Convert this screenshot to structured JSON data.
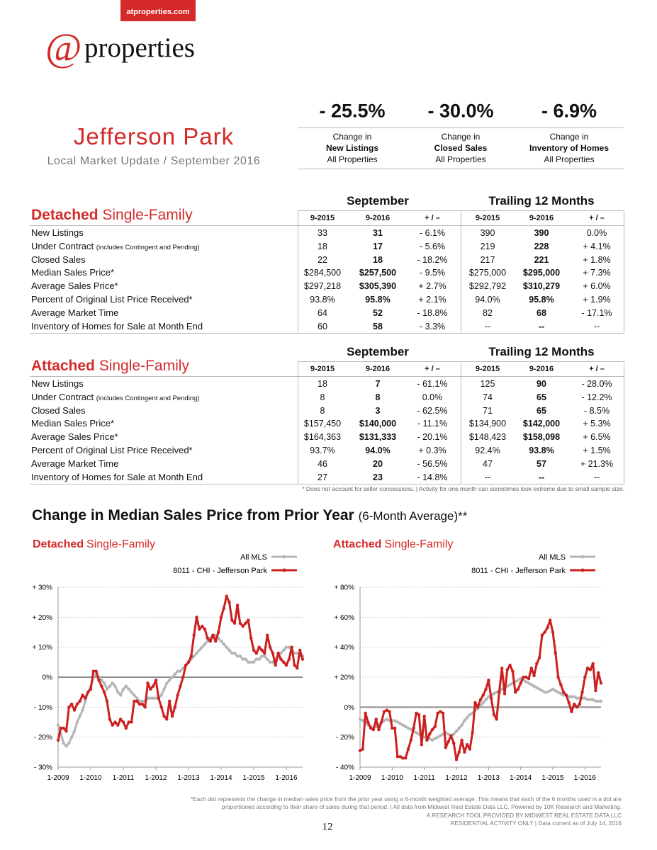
{
  "header": {
    "site": "atproperties.com",
    "logo_at": "@",
    "logo_text": "properties",
    "title": "Jefferson Park",
    "subtitle": "Local Market Update / September 2016"
  },
  "kpis": [
    {
      "value": "- 25.5%",
      "line1": "Change in",
      "line2": "New Listings",
      "line3": "All Properties"
    },
    {
      "value": "- 30.0%",
      "line1": "Change in",
      "line2": "Closed Sales",
      "line3": "All Properties"
    },
    {
      "value": "- 6.9%",
      "line1": "Change in",
      "line2": "Inventory of Homes",
      "line3": "All Properties"
    }
  ],
  "tables": [
    {
      "title_bold": "Detached",
      "title": "Single-Family",
      "groups": [
        "September",
        "Trailing 12 Months"
      ],
      "columns": [
        "9-2015",
        "9-2016",
        "+ / –",
        "9-2015",
        "9-2016",
        "+ / –"
      ],
      "rows": [
        {
          "label": "New Listings",
          "cells": [
            "33",
            "31",
            "- 6.1%",
            "390",
            "390",
            "0.0%"
          ]
        },
        {
          "label": "Under Contract",
          "note": "(includes Contingent and Pending)",
          "cells": [
            "18",
            "17",
            "- 5.6%",
            "219",
            "228",
            "+ 4.1%"
          ]
        },
        {
          "label": "Closed Sales",
          "cells": [
            "22",
            "18",
            "- 18.2%",
            "217",
            "221",
            "+ 1.8%"
          ]
        },
        {
          "label": "Median Sales Price*",
          "cells": [
            "$284,500",
            "$257,500",
            "- 9.5%",
            "$275,000",
            "$295,000",
            "+ 7.3%"
          ]
        },
        {
          "label": "Average Sales Price*",
          "cells": [
            "$297,218",
            "$305,390",
            "+ 2.7%",
            "$292,792",
            "$310,279",
            "+ 6.0%"
          ]
        },
        {
          "label": "Percent of Original List Price Received*",
          "cells": [
            "93.8%",
            "95.8%",
            "+ 2.1%",
            "94.0%",
            "95.8%",
            "+ 1.9%"
          ]
        },
        {
          "label": "Average Market Time",
          "cells": [
            "64",
            "52",
            "- 18.8%",
            "82",
            "68",
            "- 17.1%"
          ]
        },
        {
          "label": "Inventory of Homes for Sale at Month End",
          "cells": [
            "60",
            "58",
            "- 3.3%",
            "--",
            "--",
            "--"
          ]
        }
      ]
    },
    {
      "title_bold": "Attached",
      "title": "Single-Family",
      "groups": [
        "September",
        "Trailing 12 Months"
      ],
      "columns": [
        "9-2015",
        "9-2016",
        "+ / –",
        "9-2015",
        "9-2016",
        "+ / –"
      ],
      "rows": [
        {
          "label": "New Listings",
          "cells": [
            "18",
            "7",
            "- 61.1%",
            "125",
            "90",
            "- 28.0%"
          ]
        },
        {
          "label": "Under Contract",
          "note": "(includes Contingent and Pending)",
          "cells": [
            "8",
            "8",
            "0.0%",
            "74",
            "65",
            "- 12.2%"
          ]
        },
        {
          "label": "Closed Sales",
          "cells": [
            "8",
            "3",
            "- 62.5%",
            "71",
            "65",
            "- 8.5%"
          ]
        },
        {
          "label": "Median Sales Price*",
          "cells": [
            "$157,450",
            "$140,000",
            "- 11.1%",
            "$134,900",
            "$142,000",
            "+ 5.3%"
          ]
        },
        {
          "label": "Average Sales Price*",
          "cells": [
            "$164,363",
            "$131,333",
            "- 20.1%",
            "$148,423",
            "$158,098",
            "+ 6.5%"
          ]
        },
        {
          "label": "Percent of Original List Price Received*",
          "cells": [
            "93.7%",
            "94.0%",
            "+ 0.3%",
            "92.4%",
            "93.8%",
            "+ 1.5%"
          ]
        },
        {
          "label": "Average Market Time",
          "cells": [
            "46",
            "20",
            "- 56.5%",
            "47",
            "57",
            "+ 21.3%"
          ]
        },
        {
          "label": "Inventory of Homes for Sale at Month End",
          "cells": [
            "27",
            "23",
            "- 14.8%",
            "--",
            "--",
            "--"
          ]
        }
      ]
    }
  ],
  "table_note": "* Does not account for seller concessions.  |  Activity for one month can sometimes look extreme due to small sample size.",
  "charts_section": {
    "title": "Change in Median Sales Price from Prior Year",
    "subtitle": "(6-Month Average)**"
  },
  "chart_data": [
    {
      "type": "line",
      "title_bold": "Detached",
      "title": "Single-Family",
      "grid": true,
      "x": [
        "1-2009",
        "2-2009",
        "3-2009",
        "4-2009",
        "5-2009",
        "6-2009",
        "7-2009",
        "8-2009",
        "9-2009",
        "10-2009",
        "11-2009",
        "12-2009",
        "1-2010",
        "2-2010",
        "3-2010",
        "4-2010",
        "5-2010",
        "6-2010",
        "7-2010",
        "8-2010",
        "9-2010",
        "10-2010",
        "11-2010",
        "12-2010",
        "1-2011",
        "2-2011",
        "3-2011",
        "4-2011",
        "5-2011",
        "6-2011",
        "7-2011",
        "8-2011",
        "9-2011",
        "10-2011",
        "11-2011",
        "12-2011",
        "1-2012",
        "2-2012",
        "3-2012",
        "4-2012",
        "5-2012",
        "6-2012",
        "7-2012",
        "8-2012",
        "9-2012",
        "10-2012",
        "11-2012",
        "12-2012",
        "1-2013",
        "2-2013",
        "3-2013",
        "4-2013",
        "5-2013",
        "6-2013",
        "7-2013",
        "8-2013",
        "9-2013",
        "10-2013",
        "11-2013",
        "12-2013",
        "1-2014",
        "2-2014",
        "3-2014",
        "4-2014",
        "5-2014",
        "6-2014",
        "7-2014",
        "8-2014",
        "9-2014",
        "10-2014",
        "11-2014",
        "12-2014",
        "1-2015",
        "2-2015",
        "3-2015",
        "4-2015",
        "5-2015",
        "6-2015",
        "7-2015",
        "8-2015",
        "9-2015",
        "10-2015",
        "11-2015",
        "12-2015",
        "1-2016",
        "2-2016",
        "3-2016",
        "4-2016",
        "5-2016",
        "6-2016",
        "7-2016"
      ],
      "xticks": [
        "1-2009",
        "1-2010",
        "1-2011",
        "1-2012",
        "1-2013",
        "1-2014",
        "1-2015",
        "1-2016"
      ],
      "ylim": [
        -30,
        30
      ],
      "yticks": [
        {
          "value": 30,
          "label": "+ 30%"
        },
        {
          "value": 20,
          "label": "+ 20%"
        },
        {
          "value": 10,
          "label": "+ 10%"
        },
        {
          "value": 0,
          "label": "0%"
        },
        {
          "value": -10,
          "label": "- 10%"
        },
        {
          "value": -20,
          "label": "- 20%"
        },
        {
          "value": -30,
          "label": "- 30%"
        }
      ],
      "series": [
        {
          "name": "All MLS",
          "color": "#b5b5b5",
          "values": [
            -16,
            -19,
            -22,
            -23,
            -22,
            -20,
            -18,
            -15,
            -13,
            -11,
            -8,
            -5,
            -3,
            0,
            1,
            0,
            -1,
            -2,
            -4,
            -3,
            -2,
            -3,
            -5,
            -6,
            -4,
            -3,
            -4,
            -5,
            -6,
            -7,
            -8,
            -8,
            -8,
            -7,
            -7,
            -7,
            -7,
            -7,
            -6,
            -4,
            -2,
            -1,
            0,
            1,
            2,
            2,
            3,
            4,
            5,
            6,
            7,
            8,
            9,
            10,
            11,
            12,
            13,
            14,
            14,
            13,
            12,
            11,
            10,
            9,
            8,
            8,
            7,
            7,
            6,
            6,
            5,
            5,
            5,
            6,
            6,
            7,
            7,
            6,
            5,
            5,
            6,
            7,
            8,
            9,
            10,
            10,
            9,
            8,
            8,
            7,
            7
          ]
        },
        {
          "name": "8011 - CHI - Jefferson Park",
          "color": "#cc1f1f",
          "values": [
            -21,
            -17,
            -17,
            -18,
            -10,
            -9,
            -11,
            -9,
            -8,
            -6,
            -7,
            -5,
            -4,
            2,
            2,
            -1,
            -3,
            -5,
            -8,
            -14,
            -16,
            -15,
            -16,
            -14,
            -15,
            -17,
            -15,
            -15,
            -8,
            -8,
            -9,
            -9,
            -10,
            -2,
            -4,
            -3,
            -1,
            -7,
            -10,
            -13,
            -14,
            -8,
            -13,
            -10,
            -6,
            -3,
            0,
            4,
            5,
            7,
            14,
            20,
            16,
            17,
            16,
            13,
            12,
            14,
            12,
            15,
            20,
            23,
            27,
            25,
            19,
            18,
            24,
            18,
            17,
            18,
            19,
            13,
            9,
            8,
            10,
            9,
            8,
            14,
            10,
            8,
            4,
            8,
            6,
            5,
            4,
            6,
            10,
            4,
            3,
            9,
            6
          ]
        }
      ]
    },
    {
      "type": "line",
      "title_bold": "Attached",
      "title": "Single-Family",
      "grid": true,
      "x": [
        "1-2009",
        "2-2009",
        "3-2009",
        "4-2009",
        "5-2009",
        "6-2009",
        "7-2009",
        "8-2009",
        "9-2009",
        "10-2009",
        "11-2009",
        "12-2009",
        "1-2010",
        "2-2010",
        "3-2010",
        "4-2010",
        "5-2010",
        "6-2010",
        "7-2010",
        "8-2010",
        "9-2010",
        "10-2010",
        "11-2010",
        "12-2010",
        "1-2011",
        "2-2011",
        "3-2011",
        "4-2011",
        "5-2011",
        "6-2011",
        "7-2011",
        "8-2011",
        "9-2011",
        "10-2011",
        "11-2011",
        "12-2011",
        "1-2012",
        "2-2012",
        "3-2012",
        "4-2012",
        "5-2012",
        "6-2012",
        "7-2012",
        "8-2012",
        "9-2012",
        "10-2012",
        "11-2012",
        "12-2012",
        "1-2013",
        "2-2013",
        "3-2013",
        "4-2013",
        "5-2013",
        "6-2013",
        "7-2013",
        "8-2013",
        "9-2013",
        "10-2013",
        "11-2013",
        "12-2013",
        "1-2014",
        "2-2014",
        "3-2014",
        "4-2014",
        "5-2014",
        "6-2014",
        "7-2014",
        "8-2014",
        "9-2014",
        "10-2014",
        "11-2014",
        "12-2014",
        "1-2015",
        "2-2015",
        "3-2015",
        "4-2015",
        "5-2015",
        "6-2015",
        "7-2015",
        "8-2015",
        "9-2015",
        "10-2015",
        "11-2015",
        "12-2015",
        "1-2016",
        "2-2016",
        "3-2016",
        "4-2016",
        "5-2016",
        "6-2016",
        "7-2016"
      ],
      "xticks": [
        "1-2009",
        "1-2010",
        "1-2011",
        "1-2012",
        "1-2013",
        "1-2014",
        "1-2015",
        "1-2016"
      ],
      "ylim": [
        -40,
        80
      ],
      "yticks": [
        {
          "value": 80,
          "label": "+ 80%"
        },
        {
          "value": 60,
          "label": "+ 60%"
        },
        {
          "value": 40,
          "label": "+ 40%"
        },
        {
          "value": 20,
          "label": "+ 20%"
        },
        {
          "value": 0,
          "label": "0%"
        },
        {
          "value": -20,
          "label": "- 20%"
        },
        {
          "value": -40,
          "label": "- 40%"
        }
      ],
      "series": [
        {
          "name": "All MLS",
          "color": "#b5b5b5",
          "values": [
            -8,
            -9,
            -10,
            -12,
            -13,
            -14,
            -13,
            -12,
            -10,
            -9,
            -8,
            -9,
            -9,
            -9,
            -10,
            -11,
            -12,
            -13,
            -14,
            -15,
            -16,
            -17,
            -18,
            -19,
            -20,
            -21,
            -21,
            -22,
            -21,
            -20,
            -19,
            -18,
            -17,
            -18,
            -19,
            -18,
            -16,
            -14,
            -12,
            -9,
            -7,
            -5,
            -4,
            -2,
            -1,
            1,
            3,
            5,
            7,
            8,
            9,
            10,
            11,
            12,
            13,
            14,
            15,
            16,
            17,
            18,
            19,
            18,
            17,
            16,
            15,
            14,
            13,
            12,
            11,
            10,
            10,
            11,
            12,
            11,
            10,
            9,
            8,
            8,
            7,
            7,
            7,
            6,
            6,
            6,
            6,
            5,
            5,
            5,
            4,
            4,
            4
          ]
        },
        {
          "name": "8011 - CHI - Jefferson Park",
          "color": "#cc1f1f",
          "values": [
            -29,
            -28,
            -4,
            -10,
            -14,
            -15,
            -8,
            -15,
            -10,
            -3,
            -2,
            -3,
            -14,
            -14,
            -33,
            -33,
            -34,
            -34,
            -28,
            -22,
            -14,
            -4,
            -5,
            -25,
            -6,
            -22,
            -18,
            -15,
            -13,
            -4,
            -3,
            -4,
            -27,
            -23,
            -19,
            -24,
            -35,
            -30,
            -22,
            -30,
            -25,
            -28,
            -17,
            3,
            0,
            5,
            8,
            12,
            18,
            6,
            -5,
            -8,
            10,
            26,
            9,
            25,
            28,
            24,
            10,
            12,
            16,
            20,
            20,
            19,
            26,
            21,
            29,
            33,
            48,
            50,
            53,
            58,
            50,
            36,
            20,
            15,
            10,
            8,
            3,
            -3,
            2,
            0,
            2,
            10,
            20,
            26,
            25,
            29,
            11,
            23,
            16
          ]
        }
      ]
    }
  ],
  "footer": {
    "lines": [
      "*Each dot represents the change in median sales price from the prior year using a 6-month weighted average. This means that each of the 6 months used in a dot are",
      "proportioned according to their share of sales during that period.  |  All data from Midwest Real Estate Data LLC. Powered by 10K Research and Marketing.",
      "A RESEARCH TOOL PROVIDED BY MIDWEST REAL ESTATE DATA LLC",
      "RESIDENTIAL ACTIVITY ONLY  |  Data current as of July 14, 2016"
    ],
    "page": "12"
  }
}
